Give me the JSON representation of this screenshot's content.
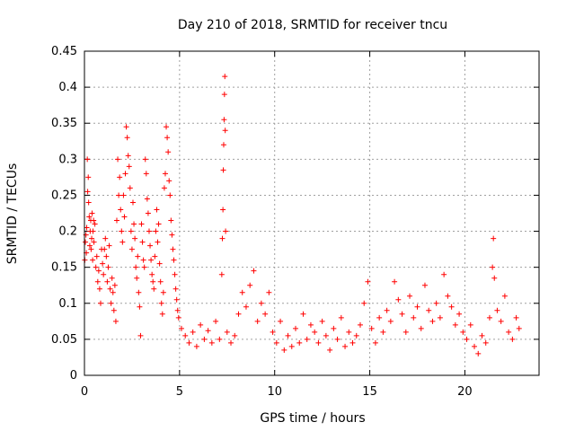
{
  "chart_data": {
    "type": "scatter",
    "title": "Day 210 of 2018, SRMTID for receiver tncu",
    "xlabel": "GPS time / hours",
    "ylabel": "SRMTID / TECUs",
    "xlim": [
      0,
      23.9
    ],
    "ylim": [
      0,
      0.45
    ],
    "xticks": [
      0,
      5,
      10,
      15,
      20
    ],
    "xtick_labels": [
      "0",
      "5",
      "10",
      "15",
      "20"
    ],
    "yticks": [
      0,
      0.05,
      0.1,
      0.15,
      0.2,
      0.25,
      0.3,
      0.35,
      0.4,
      0.45
    ],
    "ytick_labels": [
      "0",
      "0.05",
      "0.1",
      "0.15",
      "0.2",
      "0.25",
      "0.3",
      "0.35",
      "0.4",
      "0.45"
    ],
    "grid": true,
    "marker": "plus",
    "color": "#ff0000",
    "series": [
      {
        "name": "SRMTID",
        "points": [
          [
            0.02,
            0.16
          ],
          [
            0.05,
            0.185
          ],
          [
            0.08,
            0.195
          ],
          [
            0.1,
            0.17
          ],
          [
            0.12,
            0.205
          ],
          [
            0.15,
            0.3
          ],
          [
            0.17,
            0.255
          ],
          [
            0.2,
            0.275
          ],
          [
            0.22,
            0.24
          ],
          [
            0.25,
            0.22
          ],
          [
            0.28,
            0.18
          ],
          [
            0.3,
            0.2
          ],
          [
            0.33,
            0.215
          ],
          [
            0.35,
            0.175
          ],
          [
            0.38,
            0.19
          ],
          [
            0.4,
            0.225
          ],
          [
            0.43,
            0.16
          ],
          [
            0.45,
            0.2
          ],
          [
            0.48,
            0.215
          ],
          [
            0.5,
            0.185
          ],
          [
            0.55,
            0.21
          ],
          [
            0.6,
            0.15
          ],
          [
            0.65,
            0.165
          ],
          [
            0.7,
            0.13
          ],
          [
            0.75,
            0.145
          ],
          [
            0.8,
            0.12
          ],
          [
            0.85,
            0.1
          ],
          [
            0.9,
            0.175
          ],
          [
            0.95,
            0.155
          ],
          [
            1.0,
            0.14
          ],
          [
            1.05,
            0.175
          ],
          [
            1.1,
            0.19
          ],
          [
            1.15,
            0.165
          ],
          [
            1.2,
            0.13
          ],
          [
            1.25,
            0.15
          ],
          [
            1.3,
            0.18
          ],
          [
            1.35,
            0.12
          ],
          [
            1.4,
            0.1
          ],
          [
            1.45,
            0.135
          ],
          [
            1.5,
            0.115
          ],
          [
            1.55,
            0.09
          ],
          [
            1.6,
            0.125
          ],
          [
            1.65,
            0.075
          ],
          [
            1.7,
            0.215
          ],
          [
            1.75,
            0.3
          ],
          [
            1.8,
            0.25
          ],
          [
            1.85,
            0.275
          ],
          [
            1.9,
            0.23
          ],
          [
            1.95,
            0.2
          ],
          [
            2.0,
            0.185
          ],
          [
            2.05,
            0.25
          ],
          [
            2.1,
            0.22
          ],
          [
            2.15,
            0.28
          ],
          [
            2.2,
            0.345
          ],
          [
            2.25,
            0.33
          ],
          [
            2.3,
            0.305
          ],
          [
            2.35,
            0.29
          ],
          [
            2.4,
            0.26
          ],
          [
            2.45,
            0.2
          ],
          [
            2.5,
            0.175
          ],
          [
            2.55,
            0.24
          ],
          [
            2.6,
            0.21
          ],
          [
            2.65,
            0.19
          ],
          [
            2.7,
            0.15
          ],
          [
            2.75,
            0.135
          ],
          [
            2.8,
            0.165
          ],
          [
            2.85,
            0.115
          ],
          [
            2.9,
            0.095
          ],
          [
            2.95,
            0.055
          ],
          [
            3.0,
            0.21
          ],
          [
            3.05,
            0.185
          ],
          [
            3.1,
            0.16
          ],
          [
            3.15,
            0.15
          ],
          [
            3.2,
            0.3
          ],
          [
            3.25,
            0.28
          ],
          [
            3.3,
            0.245
          ],
          [
            3.35,
            0.225
          ],
          [
            3.4,
            0.2
          ],
          [
            3.45,
            0.18
          ],
          [
            3.5,
            0.16
          ],
          [
            3.55,
            0.14
          ],
          [
            3.6,
            0.13
          ],
          [
            3.65,
            0.12
          ],
          [
            3.7,
            0.165
          ],
          [
            3.75,
            0.2
          ],
          [
            3.8,
            0.23
          ],
          [
            3.85,
            0.185
          ],
          [
            3.9,
            0.21
          ],
          [
            3.95,
            0.155
          ],
          [
            4.0,
            0.13
          ],
          [
            4.05,
            0.1
          ],
          [
            4.1,
            0.085
          ],
          [
            4.15,
            0.115
          ],
          [
            4.2,
            0.26
          ],
          [
            4.25,
            0.28
          ],
          [
            4.3,
            0.345
          ],
          [
            4.35,
            0.33
          ],
          [
            4.4,
            0.31
          ],
          [
            4.45,
            0.27
          ],
          [
            4.5,
            0.25
          ],
          [
            4.55,
            0.215
          ],
          [
            4.6,
            0.195
          ],
          [
            4.65,
            0.175
          ],
          [
            4.7,
            0.16
          ],
          [
            4.75,
            0.14
          ],
          [
            4.8,
            0.12
          ],
          [
            4.85,
            0.105
          ],
          [
            4.9,
            0.09
          ],
          [
            4.95,
            0.08
          ],
          [
            5.1,
            0.065
          ],
          [
            5.3,
            0.055
          ],
          [
            5.5,
            0.045
          ],
          [
            5.7,
            0.06
          ],
          [
            5.9,
            0.04
          ],
          [
            6.1,
            0.07
          ],
          [
            6.3,
            0.05
          ],
          [
            6.5,
            0.062
          ],
          [
            6.7,
            0.045
          ],
          [
            6.9,
            0.075
          ],
          [
            7.1,
            0.05
          ],
          [
            7.22,
            0.14
          ],
          [
            7.25,
            0.19
          ],
          [
            7.28,
            0.23
          ],
          [
            7.3,
            0.285
          ],
          [
            7.32,
            0.32
          ],
          [
            7.34,
            0.355
          ],
          [
            7.36,
            0.39
          ],
          [
            7.38,
            0.415
          ],
          [
            7.4,
            0.34
          ],
          [
            7.42,
            0.2
          ],
          [
            7.5,
            0.06
          ],
          [
            7.7,
            0.045
          ],
          [
            7.9,
            0.055
          ],
          [
            8.1,
            0.085
          ],
          [
            8.3,
            0.115
          ],
          [
            8.5,
            0.095
          ],
          [
            8.7,
            0.125
          ],
          [
            8.9,
            0.145
          ],
          [
            9.1,
            0.075
          ],
          [
            9.3,
            0.1
          ],
          [
            9.5,
            0.085
          ],
          [
            9.7,
            0.115
          ],
          [
            9.9,
            0.06
          ],
          [
            10.1,
            0.045
          ],
          [
            10.3,
            0.075
          ],
          [
            10.5,
            0.035
          ],
          [
            10.7,
            0.055
          ],
          [
            10.9,
            0.04
          ],
          [
            11.1,
            0.065
          ],
          [
            11.3,
            0.045
          ],
          [
            11.5,
            0.085
          ],
          [
            11.7,
            0.05
          ],
          [
            11.9,
            0.07
          ],
          [
            12.1,
            0.06
          ],
          [
            12.3,
            0.045
          ],
          [
            12.5,
            0.075
          ],
          [
            12.7,
            0.055
          ],
          [
            12.9,
            0.035
          ],
          [
            13.1,
            0.065
          ],
          [
            13.3,
            0.05
          ],
          [
            13.5,
            0.08
          ],
          [
            13.7,
            0.04
          ],
          [
            13.9,
            0.06
          ],
          [
            14.1,
            0.045
          ],
          [
            14.3,
            0.055
          ],
          [
            14.5,
            0.07
          ],
          [
            14.7,
            0.1
          ],
          [
            14.9,
            0.13
          ],
          [
            15.1,
            0.065
          ],
          [
            15.3,
            0.045
          ],
          [
            15.5,
            0.08
          ],
          [
            15.7,
            0.06
          ],
          [
            15.9,
            0.09
          ],
          [
            16.1,
            0.075
          ],
          [
            16.3,
            0.13
          ],
          [
            16.5,
            0.105
          ],
          [
            16.7,
            0.085
          ],
          [
            16.9,
            0.06
          ],
          [
            17.1,
            0.11
          ],
          [
            17.3,
            0.08
          ],
          [
            17.5,
            0.095
          ],
          [
            17.7,
            0.065
          ],
          [
            17.9,
            0.125
          ],
          [
            18.1,
            0.09
          ],
          [
            18.3,
            0.075
          ],
          [
            18.5,
            0.1
          ],
          [
            18.7,
            0.08
          ],
          [
            18.9,
            0.14
          ],
          [
            19.1,
            0.11
          ],
          [
            19.3,
            0.095
          ],
          [
            19.5,
            0.07
          ],
          [
            19.7,
            0.085
          ],
          [
            19.9,
            0.06
          ],
          [
            20.1,
            0.05
          ],
          [
            20.3,
            0.07
          ],
          [
            20.5,
            0.04
          ],
          [
            20.7,
            0.03
          ],
          [
            20.9,
            0.055
          ],
          [
            21.1,
            0.045
          ],
          [
            21.3,
            0.08
          ],
          [
            21.45,
            0.15
          ],
          [
            21.5,
            0.19
          ],
          [
            21.55,
            0.135
          ],
          [
            21.7,
            0.09
          ],
          [
            21.9,
            0.075
          ],
          [
            22.1,
            0.11
          ],
          [
            22.3,
            0.06
          ],
          [
            22.5,
            0.05
          ],
          [
            22.7,
            0.08
          ],
          [
            22.85,
            0.065
          ]
        ]
      }
    ]
  }
}
